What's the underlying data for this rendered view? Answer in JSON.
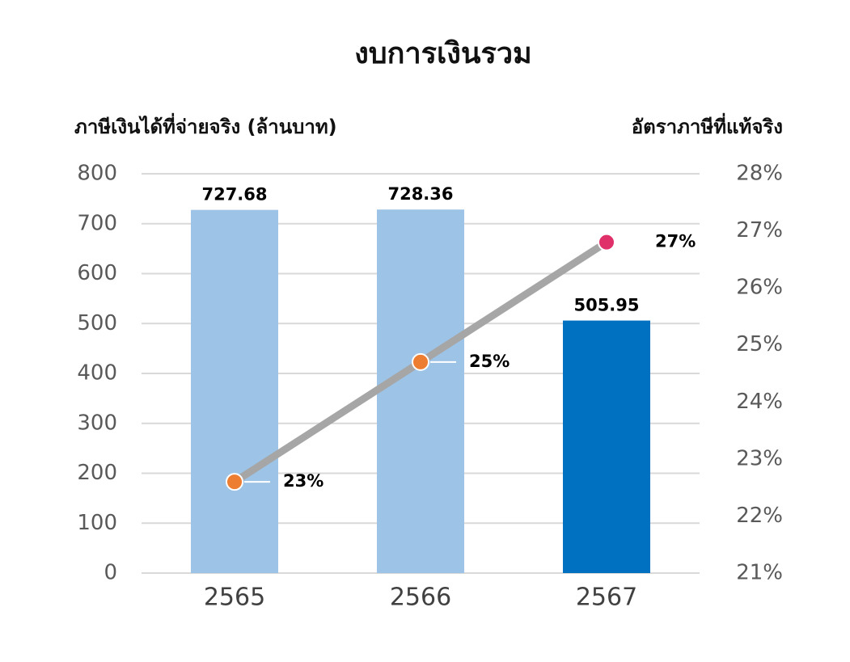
{
  "chart_data": {
    "type": "combo",
    "title": "งบการเงินรวม",
    "y_label": "ภาษีเงินได้ที่จ่ายจริง (ล้านบาท)",
    "y2_label": "อัตราภาษีที่แท้จริง",
    "categories": [
      "2565",
      "2566",
      "2567"
    ],
    "series": [
      {
        "type": "bar",
        "values": [
          727.68,
          728.36,
          505.95
        ],
        "colors": [
          "#9dc3e6",
          "#9dc3e6",
          "#0070c0"
        ]
      },
      {
        "type": "line",
        "axis": "y2",
        "color": "#a6a6a6",
        "values": [
          22.6,
          24.7,
          26.8
        ],
        "value_labels": [
          "23%",
          "25%",
          "27%"
        ],
        "marker_colors": [
          "#ed7d31",
          "#ed7d31",
          "#e0306a"
        ]
      }
    ],
    "ylim": [
      0,
      800
    ],
    "yticks": [
      0,
      100,
      200,
      300,
      400,
      500,
      600,
      700,
      800
    ],
    "y2lim": [
      21,
      28
    ],
    "y2ticks": [
      {
        "value": 21,
        "label": "21%"
      },
      {
        "value": 22,
        "label": "22%"
      },
      {
        "value": 23,
        "label": "23%"
      },
      {
        "value": 24,
        "label": "24%"
      },
      {
        "value": 25,
        "label": "25%"
      },
      {
        "value": 26,
        "label": "26%"
      },
      {
        "value": 27,
        "label": "27%"
      },
      {
        "value": 28,
        "label": "28%"
      }
    ],
    "grid": true
  }
}
